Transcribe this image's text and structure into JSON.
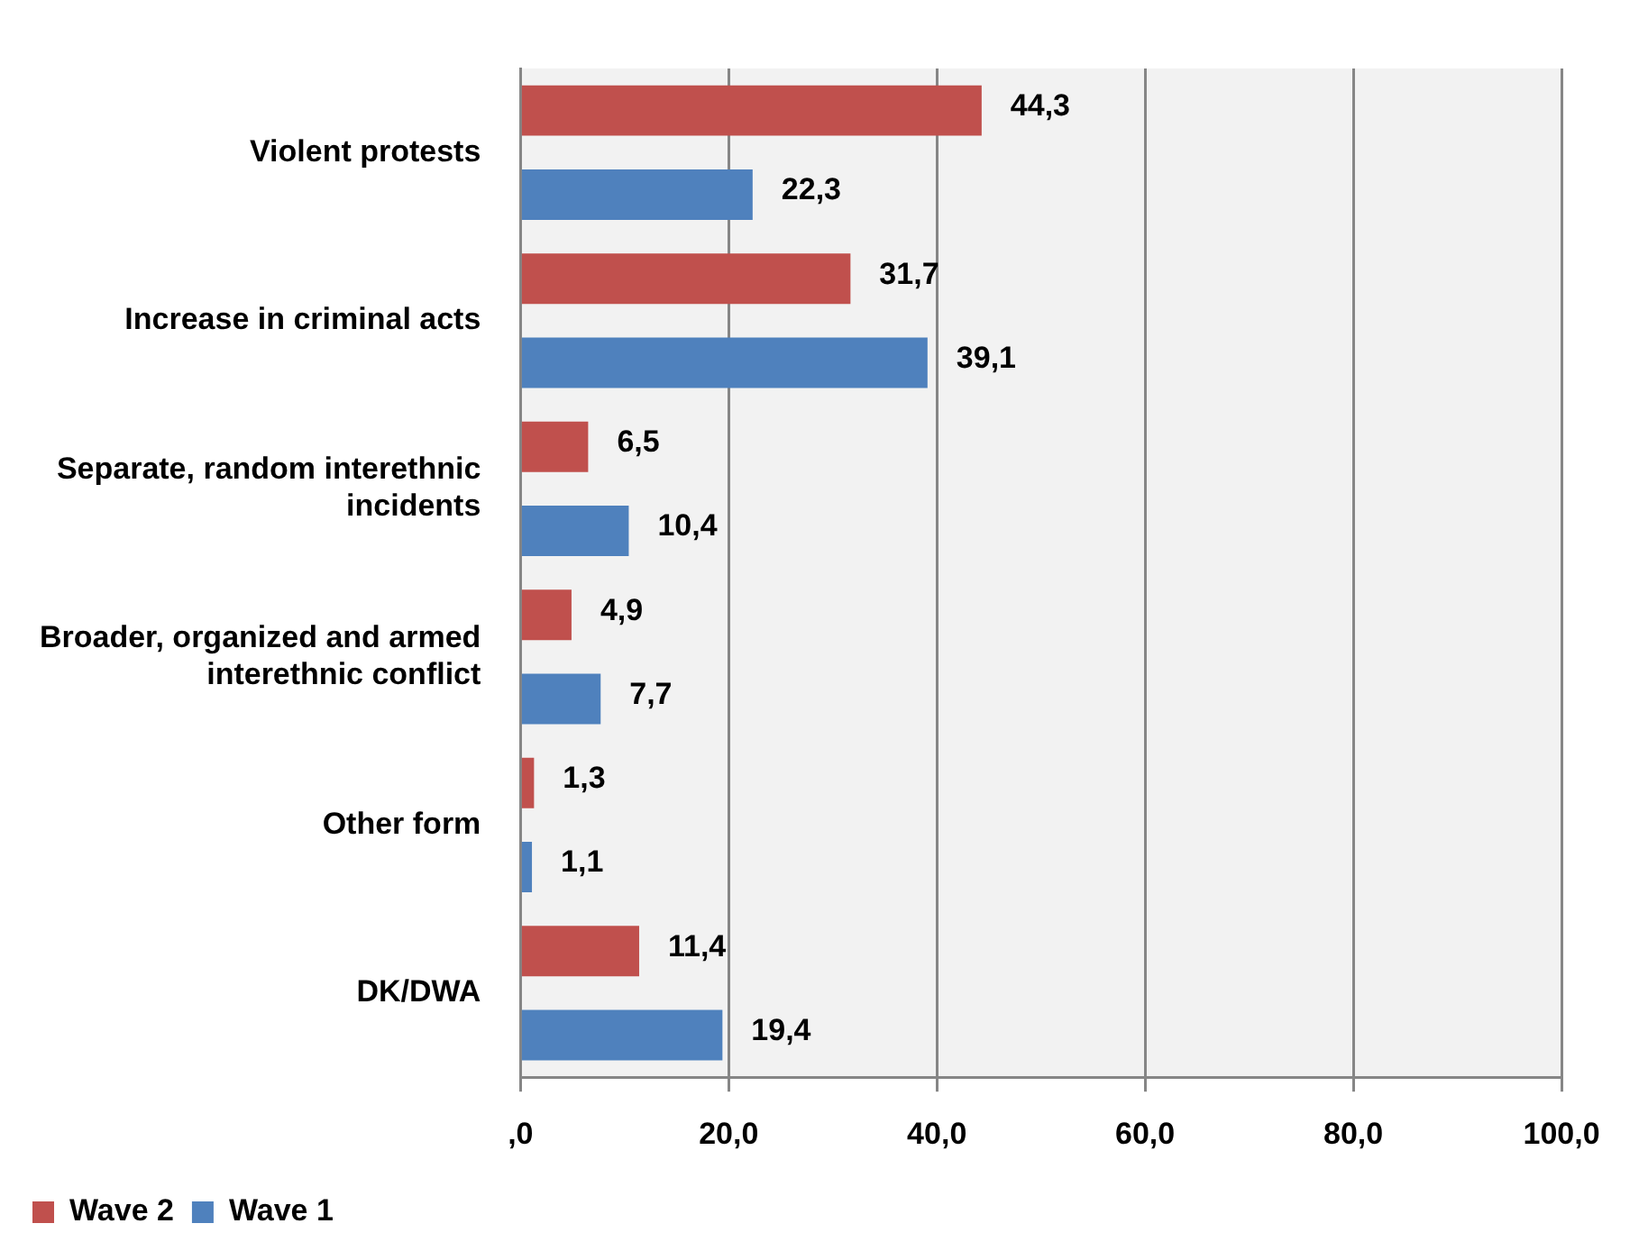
{
  "chart_data": {
    "type": "bar",
    "orientation": "horizontal",
    "categories": [
      "Violent protests",
      "Increase in criminal acts",
      "Separate, random interethnic incidents",
      "Broader, organized and armed interethnic conflict",
      "Other form",
      "DK/DWA"
    ],
    "series": [
      {
        "name": "Wave 2",
        "color": "#c0504d",
        "values": [
          44.3,
          31.7,
          6.5,
          4.9,
          1.3,
          11.4
        ],
        "value_labels": [
          "44,3",
          "31,7",
          "6,5",
          "4,9",
          "1,3",
          "11,4"
        ]
      },
      {
        "name": "Wave 1",
        "color": "#4f81bd",
        "values": [
          22.3,
          39.1,
          10.4,
          7.7,
          1.1,
          19.4
        ],
        "value_labels": [
          "22,3",
          "39,1",
          "10,4",
          "7,7",
          "1,1",
          "19,4"
        ]
      }
    ],
    "xlim": [
      0,
      100
    ],
    "xticks": [
      {
        "value": 0,
        "label": ",0"
      },
      {
        "value": 20,
        "label": "20,0"
      },
      {
        "value": 40,
        "label": "40,0"
      },
      {
        "value": 60,
        "label": "60,0"
      },
      {
        "value": 80,
        "label": "80,0"
      },
      {
        "value": 100,
        "label": "100,0"
      }
    ],
    "grid": "x",
    "legend": "bottom left"
  }
}
